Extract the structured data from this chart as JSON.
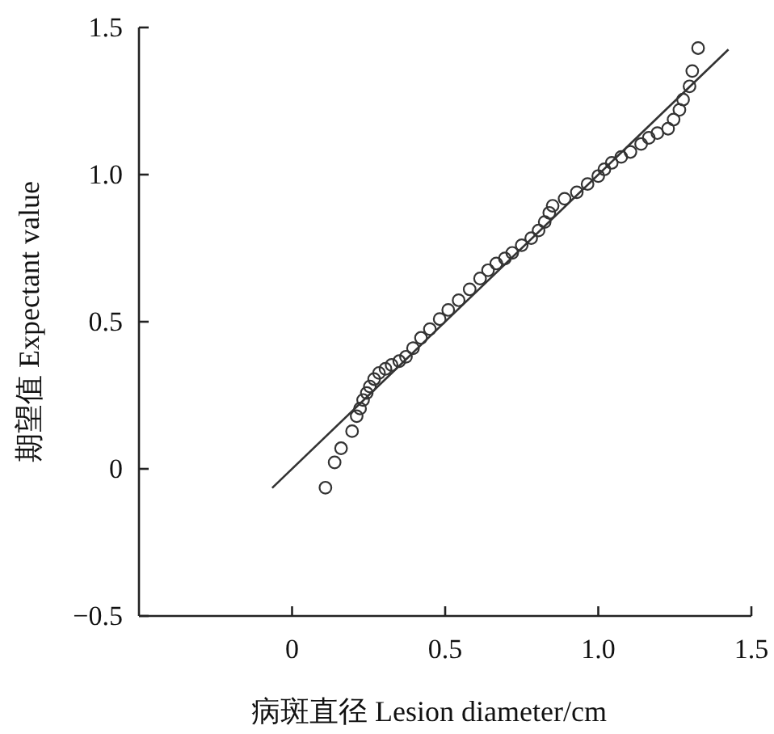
{
  "chart_data": {
    "type": "scatter",
    "xlabel": "病斑直径 Lesion diameter/cm",
    "ylabel": "期望值 Expectant value",
    "xlim": [
      -0.5,
      1.5
    ],
    "ylim": [
      -0.5,
      1.5
    ],
    "xticks": [
      0,
      0.5,
      {
        "value": 1,
        "label": "1.0"
      },
      1.5
    ],
    "yticks": [
      {
        "value": -0.5,
        "label": "−0.5"
      },
      0,
      0.5,
      {
        "value": 1,
        "label": "1.0"
      },
      1.5
    ],
    "grid": false,
    "marker": "circle",
    "series": [
      {
        "color": "#333333",
        "x": [
          0.109,
          0.139,
          0.16,
          0.196,
          0.211,
          0.222,
          0.232,
          0.244,
          0.254,
          0.268,
          0.284,
          0.305,
          0.325,
          0.35,
          0.372,
          0.395,
          0.421,
          0.45,
          0.482,
          0.51,
          0.544,
          0.58,
          0.614,
          0.64,
          0.667,
          0.695,
          0.719,
          0.75,
          0.781,
          0.805,
          0.825,
          0.84,
          0.851,
          0.89,
          0.93,
          0.965,
          1.0,
          1.02,
          1.044,
          1.075,
          1.105,
          1.14,
          1.165,
          1.193,
          1.228,
          1.246,
          1.265,
          1.277,
          1.298,
          1.307,
          1.326
        ],
        "values": [
          -0.064,
          0.022,
          0.07,
          0.128,
          0.179,
          0.205,
          0.234,
          0.258,
          0.28,
          0.305,
          0.326,
          0.34,
          0.353,
          0.366,
          0.381,
          0.41,
          0.445,
          0.475,
          0.509,
          0.54,
          0.573,
          0.61,
          0.647,
          0.675,
          0.698,
          0.715,
          0.734,
          0.76,
          0.784,
          0.81,
          0.839,
          0.87,
          0.894,
          0.918,
          0.94,
          0.968,
          0.995,
          1.018,
          1.04,
          1.06,
          1.077,
          1.104,
          1.125,
          1.141,
          1.156,
          1.187,
          1.22,
          1.255,
          1.3,
          1.352,
          1.43
        ]
      },
      {
        "type": "line",
        "color": "#333333",
        "marker": "none",
        "x": [
          -0.065,
          1.425
        ],
        "values": [
          -0.065,
          1.425
        ]
      }
    ]
  }
}
